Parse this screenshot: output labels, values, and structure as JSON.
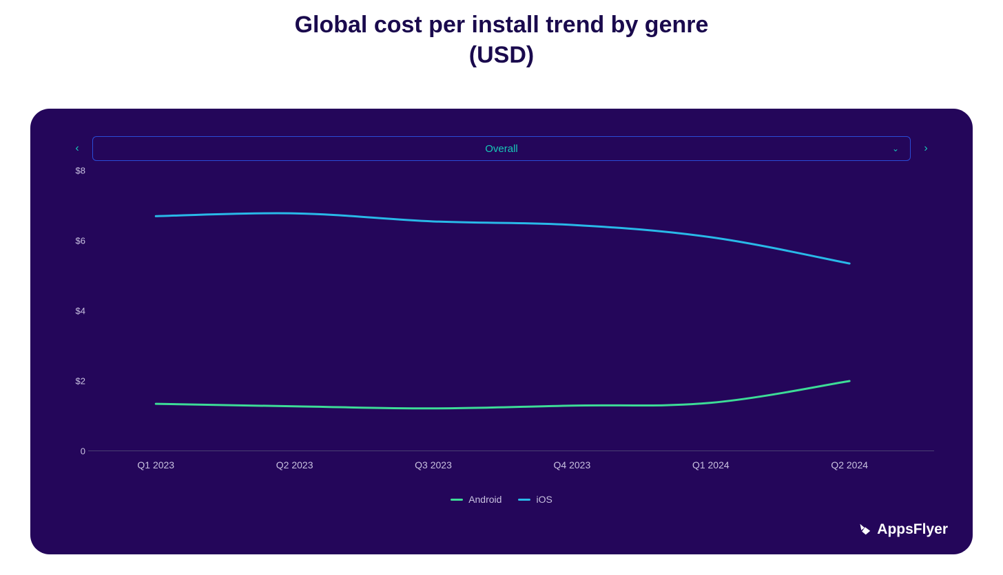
{
  "title_line1": "Global cost per install trend by genre",
  "title_line2": "(USD)",
  "title_color": "#1a0a4d",
  "title_fontsize": 34,
  "panel": {
    "background_color": "#24065a",
    "border_radius": 28
  },
  "selector": {
    "label": "Overall",
    "text_color": "#17c9b8",
    "border_color": "#2a4cd8",
    "nav_prev_glyph": "‹",
    "nav_next_glyph": "›",
    "chevron_glyph": "⌄"
  },
  "chart": {
    "type": "line",
    "ylim": [
      0,
      8
    ],
    "yticks": [
      0,
      2,
      4,
      6,
      8
    ],
    "ytick_labels": [
      "0",
      "$2",
      "$4",
      "$6",
      "$8"
    ],
    "ytick_color": "#c9c2e0",
    "ytick_fontsize": 13,
    "x_categories": [
      "Q1 2023",
      "Q2 2023",
      "Q3 2023",
      "Q4 2023",
      "Q1 2024",
      "Q2 2024"
    ],
    "x_positions_pct": [
      8,
      24.4,
      40.8,
      57.2,
      73.6,
      90
    ],
    "xtick_color": "#c9c2e0",
    "xtick_fontsize": 14,
    "axis_line_color": "#4a3f72",
    "line_width": 3,
    "smooth": true,
    "series": [
      {
        "name": "Android",
        "color": "#3ddc97",
        "values": [
          1.35,
          1.28,
          1.22,
          1.3,
          1.38,
          2.0
        ]
      },
      {
        "name": "iOS",
        "color": "#29b9e8",
        "values": [
          6.7,
          6.78,
          6.55,
          6.45,
          6.1,
          5.35
        ]
      }
    ],
    "legend": {
      "items": [
        {
          "label": "Android",
          "color": "#3ddc97"
        },
        {
          "label": "iOS",
          "color": "#29b9e8"
        }
      ],
      "text_color": "#c9c2e0",
      "fontsize": 14
    }
  },
  "brand": {
    "name": "AppsFlyer",
    "text_color": "#ffffff",
    "icon_color": "#ffffff"
  }
}
